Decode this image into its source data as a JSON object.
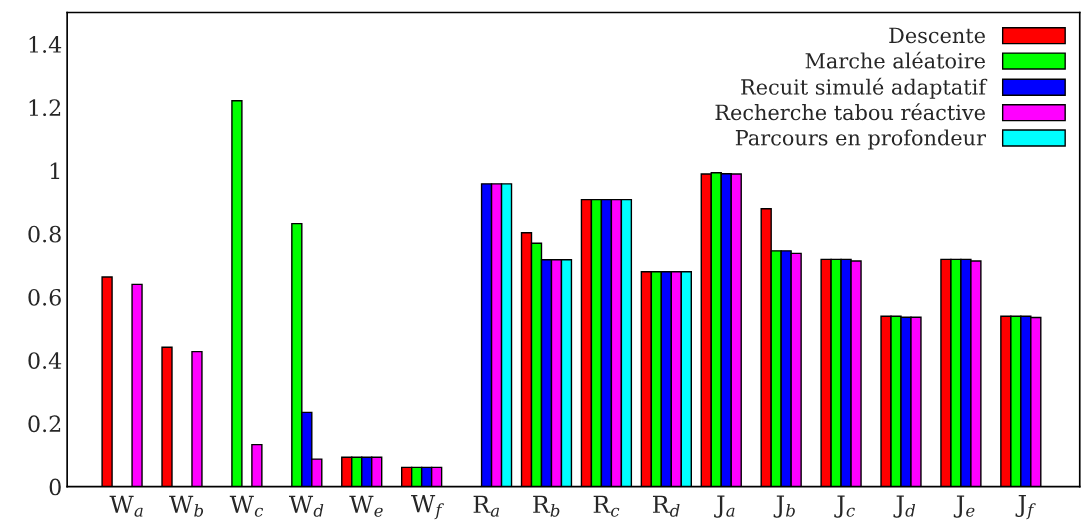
{
  "chart_data": {
    "type": "bar",
    "categories": [
      "W$_{a}$",
      "W$_{b}$",
      "W$_{c}$",
      "W$_{d}$",
      "W$_{e}$",
      "W$_{f}$",
      "R$_{a}$",
      "R$_{b}$",
      "R$_{c}$",
      "R$_{d}$",
      "J$_{a}$",
      "J$_{b}$",
      "J$_{c}$",
      "J$_{d}$",
      "J$_{e}$",
      "J$_{f}$"
    ],
    "series": [
      {
        "name": "Descente",
        "color": "#ff0000",
        "values": [
          0.663,
          0.441,
          null,
          null,
          0.093,
          0.061,
          null,
          0.803,
          0.908,
          0.68,
          0.989,
          0.879,
          0.719,
          0.539,
          0.719,
          0.539
        ]
      },
      {
        "name": "Marche aléatoire",
        "color": "#00ff00",
        "values": [
          null,
          null,
          1.221,
          0.832,
          0.093,
          0.061,
          null,
          0.77,
          0.908,
          0.68,
          0.993,
          0.746,
          0.719,
          0.539,
          0.719,
          0.539
        ]
      },
      {
        "name": "Recuit simulé adaptatif",
        "color": "#0000ff",
        "values": [
          null,
          null,
          null,
          0.235,
          0.093,
          0.061,
          0.958,
          0.718,
          0.908,
          0.68,
          0.99,
          0.746,
          0.719,
          0.536,
          0.719,
          0.539
        ]
      },
      {
        "name": "Recherche tabou réactive",
        "color": "#ff00ff",
        "values": [
          0.64,
          0.427,
          0.133,
          0.087,
          0.093,
          0.061,
          0.958,
          0.718,
          0.908,
          0.68,
          0.989,
          0.738,
          0.714,
          0.536,
          0.714,
          0.535
        ]
      },
      {
        "name": "Parcours en profondeur",
        "color": "#00ffff",
        "values": [
          null,
          null,
          null,
          null,
          null,
          null,
          0.958,
          0.718,
          0.908,
          0.68,
          null,
          null,
          null,
          null,
          null,
          null
        ]
      }
    ],
    "ylim": [
      0,
      1.5
    ],
    "yticks": [
      0,
      0.2,
      0.4,
      0.6,
      0.8,
      1,
      1.2,
      1.4
    ],
    "grid": false,
    "legend": "top right"
  }
}
